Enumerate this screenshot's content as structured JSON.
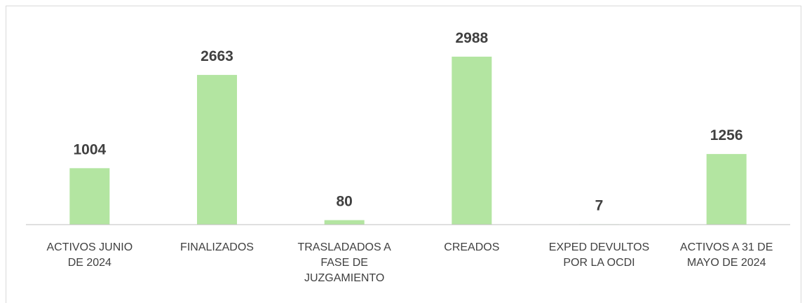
{
  "chart_data": {
    "type": "bar",
    "categories": [
      "ACTIVOS JUNIO\nDE 2024",
      "FINALIZADOS",
      "TRASLADADOS A\nFASE DE\nJUZGAMIENTO",
      "CREADOS",
      "EXPED DEVULTOS\nPOR LA OCDI",
      "ACTIVOS A 31 DE\nMAYO DE 2024"
    ],
    "values": [
      1004,
      2663,
      80,
      2988,
      7,
      1256
    ],
    "color": "#b3e5a1",
    "ylim": [
      0,
      3000
    ]
  }
}
